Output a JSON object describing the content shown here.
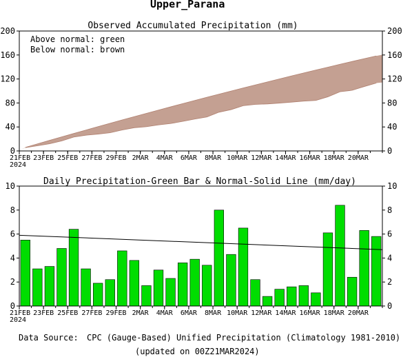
{
  "page": {
    "title": "Upper_Parana",
    "footer_source_label": "Data Source:",
    "footer_source_text": "CPC (Gauge-Based) Unified Precipitation (Climatology 1981-2010)",
    "footer_updated": "(updated on 00Z21MAR2024)"
  },
  "colors": {
    "band": "#c4a092",
    "bar": "#00dd00",
    "normal_line": "#000000",
    "source_label": "#e23b3b"
  },
  "chart_data": [
    {
      "type": "area",
      "title": "Observed Accumulated Precipitation (mm)",
      "legend": [
        "Above normal: green",
        "Below normal: brown"
      ],
      "legend_position": "top-left",
      "x_ticks": [
        {
          "label": "21FEB",
          "day": 0,
          "sub": "2024"
        },
        {
          "label": "23FEB",
          "day": 2
        },
        {
          "label": "25FEB",
          "day": 4
        },
        {
          "label": "27FEB",
          "day": 6
        },
        {
          "label": "29FEB",
          "day": 8
        },
        {
          "label": "2MAR",
          "day": 10
        },
        {
          "label": "4MAR",
          "day": 12
        },
        {
          "label": "6MAR",
          "day": 14
        },
        {
          "label": "8MAR",
          "day": 16
        },
        {
          "label": "10MAR",
          "day": 18
        },
        {
          "label": "12MAR",
          "day": 20
        },
        {
          "label": "14MAR",
          "day": 22
        },
        {
          "label": "16MAR",
          "day": 24
        },
        {
          "label": "18MAR",
          "day": 26
        },
        {
          "label": "20MAR",
          "day": 28
        }
      ],
      "y_ticks": [
        0,
        40,
        80,
        120,
        160,
        200
      ],
      "ylim": [
        0,
        200
      ],
      "x_days": [
        0,
        1,
        2,
        3,
        4,
        5,
        6,
        7,
        8,
        9,
        10,
        11,
        12,
        13,
        14,
        15,
        16,
        17,
        18,
        19,
        20,
        21,
        22,
        23,
        24,
        25,
        26,
        27,
        28,
        29
      ],
      "observed": [
        5.5,
        8.6,
        11.9,
        16.7,
        23.1,
        26.2,
        28.1,
        30.3,
        34.9,
        38.7,
        40.4,
        43.4,
        45.7,
        49.3,
        53.2,
        56.6,
        64.6,
        68.9,
        75.4,
        77.6,
        78.4,
        79.8,
        81.4,
        83.1,
        84.2,
        90.3,
        98.7,
        101.1,
        107.4,
        113.2
      ],
      "normal": [
        5.9,
        11.8,
        17.6,
        23.4,
        29.1,
        34.8,
        40.5,
        46.1,
        51.7,
        57.2,
        62.7,
        68.1,
        73.5,
        78.9,
        84.2,
        89.5,
        94.7,
        99.9,
        105.0,
        110.1,
        115.1,
        120.1,
        125.1,
        130.0,
        134.9,
        139.7,
        144.5,
        149.2,
        153.9,
        158.5
      ],
      "grid": false
    },
    {
      "type": "bar",
      "title": "Daily Precipitation-Green Bar & Normal-Solid Line (mm/day)",
      "x_ticks": [
        {
          "label": "21FEB",
          "day": 0,
          "sub": "2024"
        },
        {
          "label": "23FEB",
          "day": 2
        },
        {
          "label": "25FEB",
          "day": 4
        },
        {
          "label": "27FEB",
          "day": 6
        },
        {
          "label": "29FEB",
          "day": 8
        },
        {
          "label": "2MAR",
          "day": 10
        },
        {
          "label": "4MAR",
          "day": 12
        },
        {
          "label": "6MAR",
          "day": 14
        },
        {
          "label": "8MAR",
          "day": 16
        },
        {
          "label": "10MAR",
          "day": 18
        },
        {
          "label": "12MAR",
          "day": 20
        },
        {
          "label": "14MAR",
          "day": 22
        },
        {
          "label": "16MAR",
          "day": 24
        },
        {
          "label": "18MAR",
          "day": 26
        },
        {
          "label": "20MAR",
          "day": 28
        }
      ],
      "y_ticks": [
        0,
        2,
        4,
        6,
        8,
        10
      ],
      "ylim": [
        0,
        10
      ],
      "x_days": [
        0,
        1,
        2,
        3,
        4,
        5,
        6,
        7,
        8,
        9,
        10,
        11,
        12,
        13,
        14,
        15,
        16,
        17,
        18,
        19,
        20,
        21,
        22,
        23,
        24,
        25,
        26,
        27,
        28,
        29
      ],
      "values": [
        5.5,
        3.1,
        3.3,
        4.8,
        6.4,
        3.1,
        1.9,
        2.2,
        4.6,
        3.8,
        1.7,
        3.0,
        2.3,
        3.6,
        3.9,
        3.4,
        8.0,
        4.3,
        6.5,
        2.2,
        0.8,
        1.4,
        1.6,
        1.7,
        1.1,
        6.1,
        8.4,
        2.4,
        6.3,
        5.8
      ],
      "normal_line": {
        "start": 5.9,
        "end": 4.7
      },
      "grid": false
    }
  ]
}
